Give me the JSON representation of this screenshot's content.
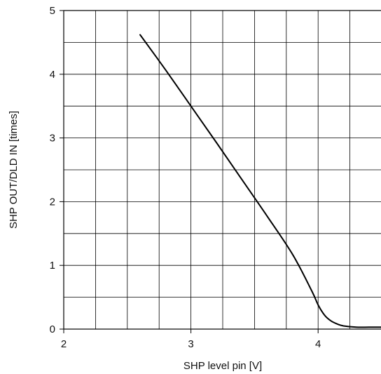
{
  "chart_data": {
    "type": "line",
    "xlabel": "SHP level pin [V]",
    "ylabel": "SHP OUT/DLD IN [times]",
    "xlim": [
      2,
      4.5
    ],
    "ylim": [
      0,
      5
    ],
    "x_ticks": [
      2,
      3,
      4
    ],
    "y_ticks": [
      0,
      1,
      2,
      3,
      4,
      5
    ],
    "x_grid_step": 0.25,
    "y_grid_step": 0.5,
    "grid": true,
    "series": [
      {
        "x": [
          2.6,
          2.8,
          3.0,
          3.2,
          3.4,
          3.6,
          3.8,
          3.95,
          4.0,
          4.05,
          4.1,
          4.15,
          4.2,
          4.3,
          4.4,
          4.5
        ],
        "y": [
          4.62,
          4.07,
          3.5,
          2.93,
          2.35,
          1.77,
          1.17,
          0.6,
          0.38,
          0.22,
          0.13,
          0.08,
          0.05,
          0.03,
          0.03,
          0.03
        ]
      }
    ]
  }
}
